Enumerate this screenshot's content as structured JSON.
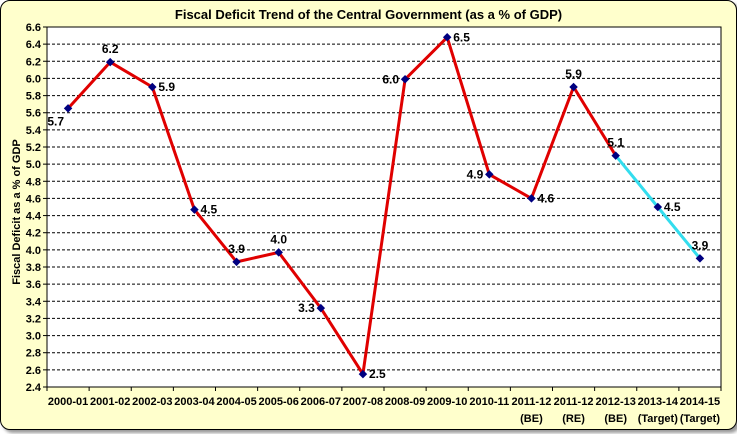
{
  "chart_data": {
    "type": "line",
    "title": "Fiscal Deficit Trend of the Central Government (as a % of GDP)",
    "ylabel": "Fiscal Deficit as a % of GDP",
    "xlabel": "",
    "ylim": [
      2.4,
      6.6
    ],
    "ytick_step": 0.2,
    "grid": true,
    "categories": [
      [
        "2000-01"
      ],
      [
        "2001-02"
      ],
      [
        "2002-03"
      ],
      [
        "2003-04"
      ],
      [
        "2004-05"
      ],
      [
        "2005-06"
      ],
      [
        "2006-07"
      ],
      [
        "2007-08"
      ],
      [
        "2008-09"
      ],
      [
        "2009-10"
      ],
      [
        "2010-11"
      ],
      [
        "2011-12",
        "(BE)"
      ],
      [
        "2011-12",
        "(RE)"
      ],
      [
        "2012-13",
        "(BE)"
      ],
      [
        "2013-14",
        "(Target)"
      ],
      [
        "2014-15",
        "(Target)"
      ]
    ],
    "values": [
      5.65,
      6.19,
      5.9,
      4.47,
      3.86,
      3.97,
      3.32,
      2.55,
      5.99,
      6.48,
      4.88,
      4.6,
      5.9,
      5.1,
      4.5,
      3.9
    ],
    "data_labels": [
      "5.7",
      "6.2",
      "5.9",
      "4.5",
      "3.9",
      "4.0",
      "3.3",
      "2.5",
      "6.0",
      "6.5",
      "4.9",
      "4.6",
      "5.9",
      "5.1",
      "4.5",
      "3.9"
    ],
    "label_placement": [
      "below-left",
      "above",
      "right",
      "right",
      "above",
      "above",
      "left",
      "right",
      "left",
      "right",
      "left",
      "right",
      "above",
      "above",
      "right",
      "above"
    ],
    "series_segments": [
      {
        "from": 0,
        "to": 13,
        "color": "#e00000"
      },
      {
        "from": 13,
        "to": 15,
        "color": "#33ddee"
      }
    ],
    "marker_color": "#000080"
  }
}
